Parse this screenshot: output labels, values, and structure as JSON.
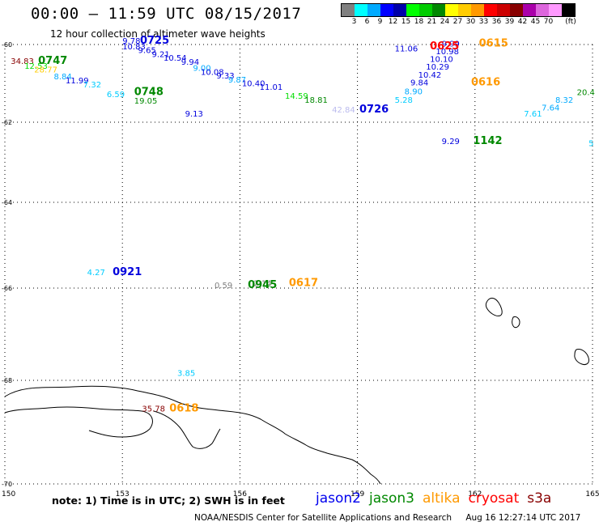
{
  "header": {
    "title": "00:00 – 11:59 UTC 08/15/2017",
    "subtitle": "12 hour collection of altimeter wave heights"
  },
  "legend": {
    "unit": "(ft)",
    "colors": [
      "#808080",
      "#00ffff",
      "#00aaff",
      "#0000ff",
      "#0000aa",
      "#00ff00",
      "#00cc00",
      "#008800",
      "#ffff00",
      "#ffcc00",
      "#ff9900",
      "#ff0000",
      "#cc0000",
      "#880000",
      "#aa00aa",
      "#dd66dd",
      "#ff99ff",
      "#000000"
    ],
    "labels": [
      "3",
      "6",
      "9",
      "12",
      "15",
      "18",
      "21",
      "24",
      "27",
      "30",
      "33",
      "36",
      "39",
      "42",
      "45",
      "70"
    ]
  },
  "axes": {
    "x_ticks": [
      "150",
      "153",
      "156",
      "159",
      "162",
      "165"
    ],
    "y_ticks": [
      "-60",
      "-62",
      "-64",
      "-66",
      "-68",
      "-70"
    ]
  },
  "observations": [
    {
      "text": "9.78",
      "lon": 153.0,
      "lat": -59.98,
      "color": "#0000dd"
    },
    {
      "text": "10.83",
      "lon": 153.0,
      "lat": -60.12,
      "color": "#0000dd"
    },
    {
      "text": "9.65",
      "lon": 153.4,
      "lat": -60.22,
      "color": "#0000dd"
    },
    {
      "text": "9.21",
      "lon": 153.75,
      "lat": -60.32,
      "color": "#0000dd"
    },
    {
      "text": "10.54",
      "lon": 154.05,
      "lat": -60.42,
      "color": "#0000dd"
    },
    {
      "text": "9.94",
      "lon": 154.5,
      "lat": -60.52,
      "color": "#0000dd"
    },
    {
      "text": "9.00",
      "lon": 154.8,
      "lat": -60.68,
      "color": "#00aaff"
    },
    {
      "text": "10.08",
      "lon": 155.0,
      "lat": -60.78,
      "color": "#0000dd"
    },
    {
      "text": "9.33",
      "lon": 155.4,
      "lat": -60.88,
      "color": "#0000dd"
    },
    {
      "text": "9.87",
      "lon": 155.7,
      "lat": -60.98,
      "color": "#00aaff"
    },
    {
      "text": "10.40",
      "lon": 156.05,
      "lat": -61.07,
      "color": "#0000dd"
    },
    {
      "text": "11.01",
      "lon": 156.5,
      "lat": -61.17,
      "color": "#0000dd"
    },
    {
      "text": "14.59",
      "lon": 157.15,
      "lat": -61.4,
      "color": "#00dd00"
    },
    {
      "text": "18.81",
      "lon": 157.65,
      "lat": -61.5,
      "color": "#008800"
    },
    {
      "text": "42.84",
      "lon": 158.35,
      "lat": -61.75,
      "color": "#bbbbee"
    },
    {
      "text": "9.13",
      "lon": 154.6,
      "lat": -61.85,
      "color": "#0000dd"
    },
    {
      "text": "34.83",
      "lon": 150.15,
      "lat": -60.5,
      "color": "#880000"
    },
    {
      "text": "12.53",
      "lon": 150.5,
      "lat": -60.62,
      "color": "#00dd00"
    },
    {
      "text": "28.77",
      "lon": 150.75,
      "lat": -60.72,
      "color": "#ffcc00"
    },
    {
      "text": "8.84",
      "lon": 151.25,
      "lat": -60.9,
      "color": "#00aaff"
    },
    {
      "text": "11.99",
      "lon": 151.55,
      "lat": -61.0,
      "color": "#0000dd"
    },
    {
      "text": "7.32",
      "lon": 152.0,
      "lat": -61.1,
      "color": "#00ccff"
    },
    {
      "text": "6.59",
      "lon": 152.6,
      "lat": -61.35,
      "color": "#00ccff"
    },
    {
      "text": "19.05",
      "lon": 153.3,
      "lat": -61.52,
      "color": "#008800"
    },
    {
      "text": "11.06",
      "lon": 159.95,
      "lat": -60.18,
      "color": "#0000dd"
    },
    {
      "text": "9.99",
      "lon": 161.15,
      "lat": -60.05,
      "color": "#0000dd"
    },
    {
      "text": "10.98",
      "lon": 161.0,
      "lat": -60.25,
      "color": "#0000dd"
    },
    {
      "text": "10.10",
      "lon": 160.85,
      "lat": -60.45,
      "color": "#0000dd"
    },
    {
      "text": "10.29",
      "lon": 160.75,
      "lat": -60.65,
      "color": "#0000dd"
    },
    {
      "text": "10.42",
      "lon": 160.55,
      "lat": -60.85,
      "color": "#0000dd"
    },
    {
      "text": "9.84",
      "lon": 160.35,
      "lat": -61.05,
      "color": "#0000dd"
    },
    {
      "text": "8.90",
      "lon": 160.2,
      "lat": -61.28,
      "color": "#00aaff"
    },
    {
      "text": "5.28",
      "lon": 159.95,
      "lat": -61.5,
      "color": "#00ccff"
    },
    {
      "text": "9.29",
      "lon": 161.15,
      "lat": -62.55,
      "color": "#0000dd"
    },
    {
      "text": "7.61",
      "lon": 163.25,
      "lat": -61.85,
      "color": "#00ccff"
    },
    {
      "text": "7.64",
      "lon": 163.7,
      "lat": -61.7,
      "color": "#00aaff"
    },
    {
      "text": "8.32",
      "lon": 164.05,
      "lat": -61.5,
      "color": "#00aaff"
    },
    {
      "text": "20.4",
      "lon": 164.6,
      "lat": -61.3,
      "color": "#008800"
    },
    {
      "text": "5",
      "lon": 164.9,
      "lat": -62.6,
      "color": "#00ccff"
    },
    {
      "text": "4.27",
      "lon": 152.1,
      "lat": -65.7,
      "color": "#00ccff"
    },
    {
      "text": "0.59",
      "lon": 155.35,
      "lat": -66.0,
      "color": "#808080"
    },
    {
      "text": "2.14",
      "lon": 156.35,
      "lat": -65.95,
      "color": "#808080"
    },
    {
      "text": "3.85",
      "lon": 154.4,
      "lat": -67.9,
      "color": "#00ccff"
    },
    {
      "text": "35.78",
      "lon": 153.5,
      "lat": -68.6,
      "color": "#880000"
    }
  ],
  "time_labels": [
    {
      "text": "0725",
      "lon": 153.45,
      "lat": -59.98,
      "color": "#0000dd"
    },
    {
      "text": "0747",
      "lon": 150.85,
      "lat": -60.5,
      "color": "#008800"
    },
    {
      "text": "0748",
      "lon": 153.3,
      "lat": -61.3,
      "color": "#008800"
    },
    {
      "text": "0726",
      "lon": 159.05,
      "lat": -61.75,
      "color": "#0000dd"
    },
    {
      "text": "0625",
      "lon": 160.85,
      "lat": -60.12,
      "color": "#ff0000"
    },
    {
      "text": "0615",
      "lon": 162.1,
      "lat": -60.05,
      "color": "#ff9900"
    },
    {
      "text": "0616",
      "lon": 161.9,
      "lat": -61.05,
      "color": "#ff9900"
    },
    {
      "text": "1142",
      "lon": 161.95,
      "lat": -62.55,
      "color": "#008800"
    },
    {
      "text": "0921",
      "lon": 152.75,
      "lat": -65.7,
      "color": "#0000dd"
    },
    {
      "text": "0945",
      "lon": 156.2,
      "lat": -66.0,
      "color": "#008800"
    },
    {
      "text": "0617",
      "lon": 157.25,
      "lat": -65.95,
      "color": "#ff9900"
    },
    {
      "text": "0618",
      "lon": 154.2,
      "lat": -68.6,
      "color": "#ff9900"
    }
  ],
  "footer": {
    "note": "note: 1) Time is in UTC; 2) SWH is in feet",
    "missions": [
      {
        "name": "jason2",
        "color": "#0000ee"
      },
      {
        "name": "jason3",
        "color": "#008800"
      },
      {
        "name": "altika",
        "color": "#ff9900"
      },
      {
        "name": "cryosat",
        "color": "#ff0000"
      },
      {
        "name": "s3a",
        "color": "#880000"
      }
    ],
    "credit": "NOAA/NESDIS Center for Satellite Applications and Research",
    "timestamp": "Aug 16 12:27:14 UTC 2017"
  }
}
